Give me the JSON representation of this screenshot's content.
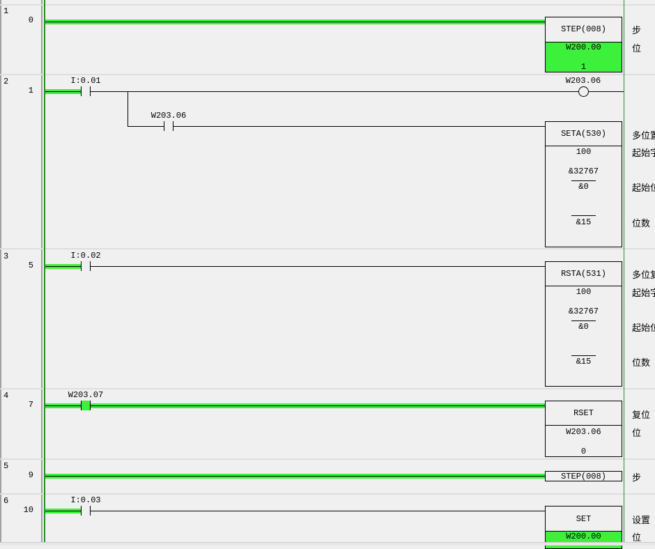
{
  "rungs": [
    {
      "rung": "1",
      "step": "0",
      "instr": "STEP(008)",
      "op1": "W200.00",
      "op2": "1",
      "comments": [
        "步",
        "位"
      ]
    },
    {
      "rung": "2",
      "step": "1",
      "contact1": "I:0.01",
      "contact2": "W203.06",
      "coil": "W203.06",
      "instr": "SETA(530)",
      "op1": "100",
      "op2": "&32767",
      "op3": "&0",
      "op4": "&15",
      "comments": [
        "多位置",
        "起始字",
        "起始位",
        "位数"
      ]
    },
    {
      "rung": "3",
      "step": "5",
      "contact1": "I:0.02",
      "instr": "RSTA(531)",
      "op1": "100",
      "op2": "&32767",
      "op3": "&0",
      "op4": "&15",
      "comments": [
        "多位复",
        "起始字",
        "起始位",
        "位数"
      ]
    },
    {
      "rung": "4",
      "step": "7",
      "contact1": "W203.07",
      "instr": "RSET",
      "op1": "W203.06",
      "op2": "0",
      "comments": [
        "复位",
        "位"
      ]
    },
    {
      "rung": "5",
      "step": "9",
      "instr": "STEP(008)",
      "comments": [
        "步"
      ]
    },
    {
      "rung": "6",
      "step": "10",
      "contact1": "I:0.03",
      "instr": "SET",
      "op1": "W200.00",
      "comments": [
        "设置",
        "位"
      ]
    }
  ],
  "colors": {
    "energized": "#3cf03c",
    "rail": "#2a8a2a"
  }
}
